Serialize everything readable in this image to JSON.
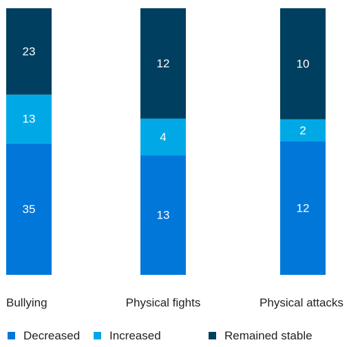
{
  "chart_data": {
    "type": "bar",
    "stacked": true,
    "categories": [
      "Bullying",
      "Physical fights",
      "Physical attacks"
    ],
    "series": [
      {
        "name": "Decreased",
        "values": [
          35,
          13,
          12
        ],
        "color": "#0077d9"
      },
      {
        "name": "Increased",
        "values": [
          13,
          4,
          2
        ],
        "color": "#00a9e6"
      },
      {
        "name": "Remained stable",
        "values": [
          23,
          12,
          10
        ],
        "color": "#003f5f"
      }
    ],
    "normalized": true,
    "title": "",
    "xlabel": "",
    "ylabel": "",
    "legend_position": "bottom",
    "grid": false
  }
}
